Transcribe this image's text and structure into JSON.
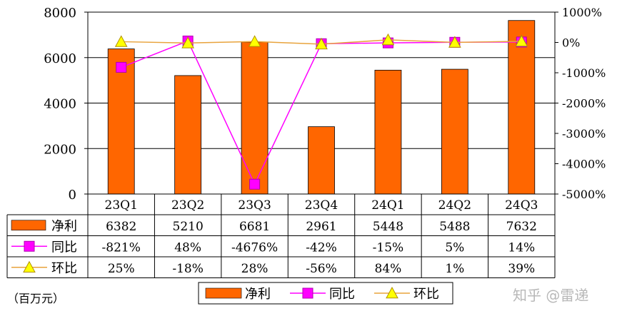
{
  "chart_data": {
    "type": "bar",
    "categories": [
      "23Q1",
      "23Q2",
      "23Q3",
      "23Q4",
      "24Q1",
      "24Q2",
      "24Q3"
    ],
    "series": [
      {
        "name": "净利",
        "kind": "bar",
        "axis": "left",
        "color": "#ff6600",
        "values": [
          6382,
          5210,
          6681,
          2961,
          5448,
          5488,
          7632
        ]
      },
      {
        "name": "同比",
        "kind": "line",
        "axis": "right",
        "color": "#ff00ff",
        "marker": "square",
        "values": [
          -821,
          48,
          -4676,
          -42,
          -15,
          5,
          14
        ]
      },
      {
        "name": "环比",
        "kind": "line",
        "axis": "right",
        "color": "#e8a33c",
        "marker": "triangle",
        "values": [
          25,
          -18,
          28,
          -56,
          84,
          1,
          39
        ]
      }
    ],
    "table_rows": [
      [
        "6382",
        "5210",
        "6681",
        "2961",
        "5448",
        "5488",
        "7632"
      ],
      [
        "-821%",
        "48%",
        "-4676%",
        "-42%",
        "-15%",
        "5%",
        "14%"
      ],
      [
        "25%",
        "-18%",
        "28%",
        "-56%",
        "84%",
        "1%",
        "39%"
      ]
    ],
    "y_left": {
      "lim": [
        0,
        8000
      ],
      "ticks": [
        0,
        2000,
        4000,
        6000,
        8000
      ],
      "tick_labels": [
        "0",
        "2000",
        "4000",
        "6000",
        "8000"
      ]
    },
    "y_right": {
      "lim": [
        -5000,
        1000
      ],
      "ticks": [
        1000,
        0,
        -1000,
        -2000,
        -3000,
        -4000,
        -5000
      ],
      "tick_labels": [
        "1000%",
        "0%",
        "-1000%",
        "-2000%",
        "-3000%",
        "-4000%",
        "-5000%"
      ]
    },
    "grid": true,
    "legend_position": "bottom",
    "unit_note": "（百万元）",
    "watermark": "知乎 @雷递"
  }
}
